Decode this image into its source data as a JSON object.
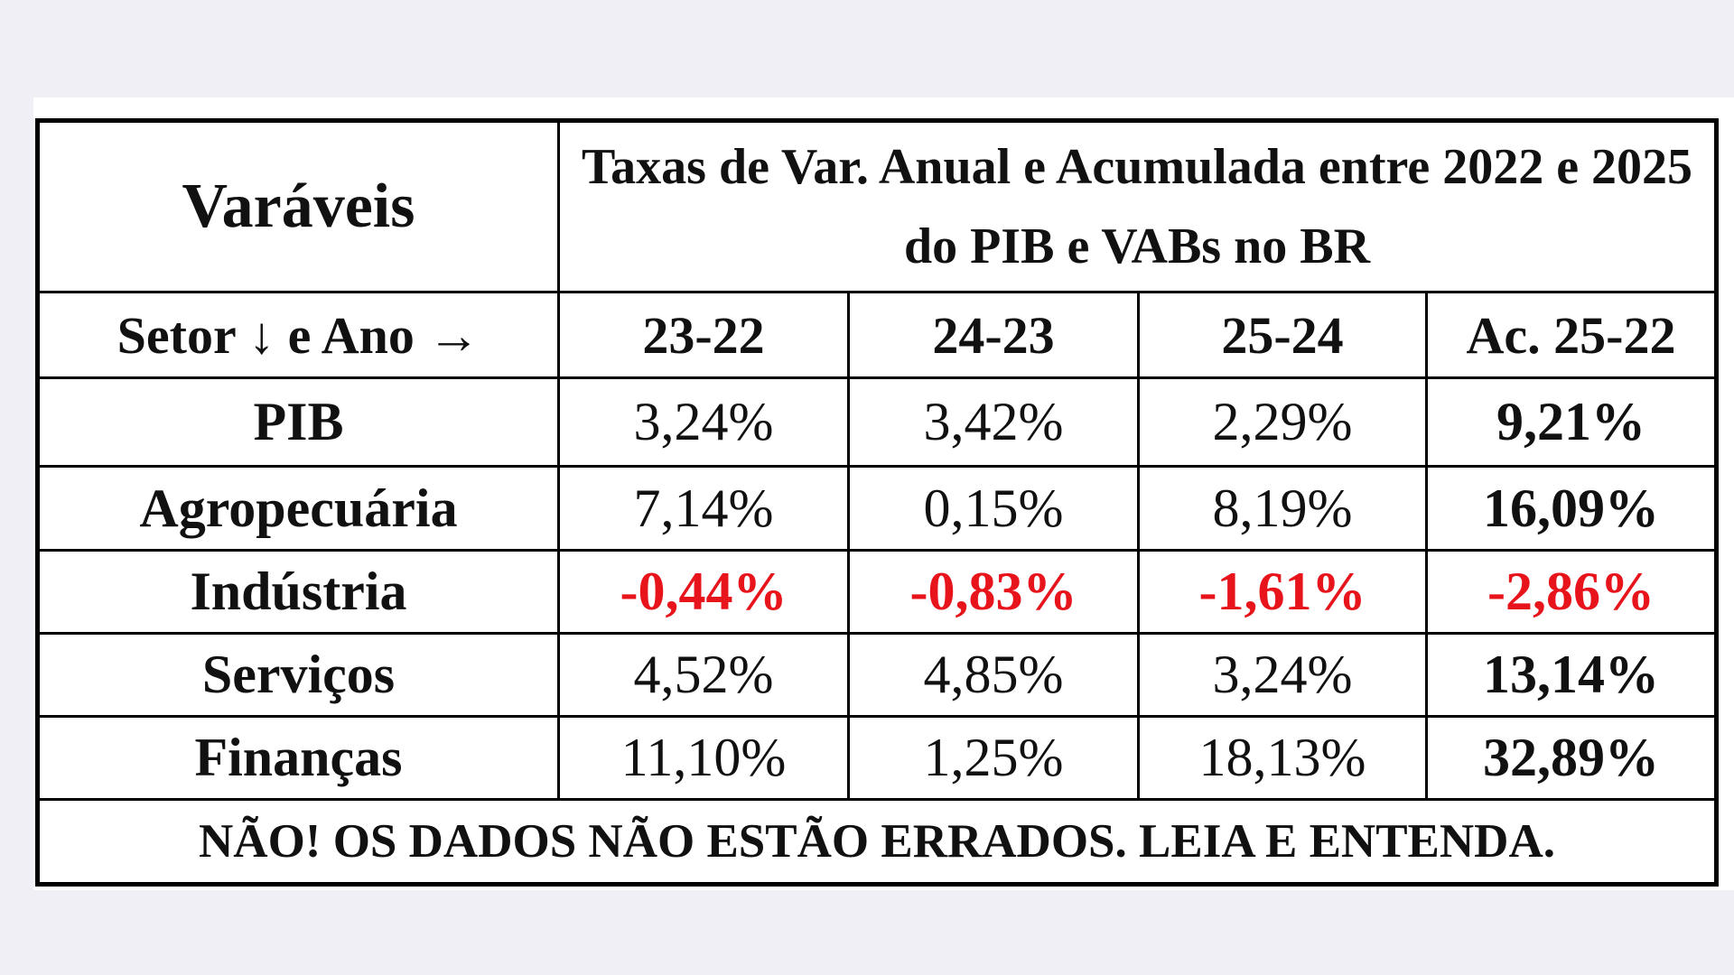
{
  "header": {
    "title": "Varáveis",
    "subtitle": "Taxas de Var. Anual e Acumulada entre 2022 e 2025 do PIB e VABs no BR"
  },
  "table": {
    "columns": [
      "Setor ↓ e Ano →",
      "23-22",
      "24-23",
      "25-24",
      "Ac. 25-22"
    ],
    "rows": [
      {
        "cells": [
          "PIB",
          "3,24%",
          "3,42%",
          "2,29%",
          "9,21%"
        ]
      },
      {
        "cells": [
          "Agropecuária",
          "7,14%",
          "0,15%",
          "8,19%",
          "16,09%"
        ]
      },
      {
        "cells": [
          "Indústria",
          "-0,44%",
          "-0,83%",
          "-1,61%",
          "-2,86%"
        ],
        "color": "#e8141c"
      },
      {
        "cells": [
          "Serviços",
          "4,52%",
          "4,85%",
          "3,24%",
          "13,14%"
        ]
      },
      {
        "cells": [
          "Finanças",
          "11,10%",
          "1,25%",
          "18,13%",
          "32,89%"
        ]
      }
    ]
  },
  "footer": {
    "note": "NÃO! OS DADOS NÃO ESTÃO ERRADOS. LEIA E ENTENDA."
  }
}
